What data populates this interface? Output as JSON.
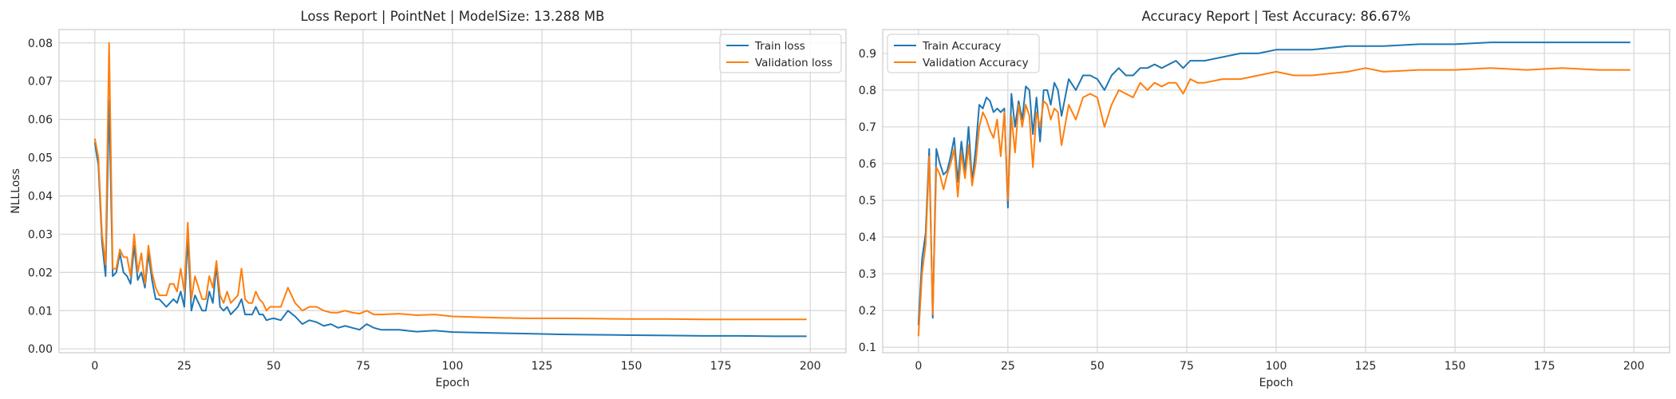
{
  "chart_data": [
    {
      "type": "line",
      "title": "Loss Report | PointNet | ModelSize: 13.288 MB",
      "xlabel": "Epoch",
      "ylabel": "NLLLoss",
      "xlim": [
        -10,
        210
      ],
      "ylim": [
        -0.001,
        0.0835
      ],
      "xticks": [
        0,
        25,
        50,
        75,
        100,
        125,
        150,
        175,
        200
      ],
      "yticks": [
        0.0,
        0.01,
        0.02,
        0.03,
        0.04,
        0.05,
        0.06,
        0.07,
        0.08
      ],
      "ytick_labels": [
        "0.00",
        "0.01",
        "0.02",
        "0.03",
        "0.04",
        "0.05",
        "0.06",
        "0.07",
        "0.08"
      ],
      "grid": true,
      "legend_position": "top-right",
      "series": [
        {
          "name": "Train loss",
          "color": "#1f77b4",
          "x": [
            0,
            1,
            2,
            3,
            4,
            5,
            6,
            7,
            8,
            9,
            10,
            11,
            12,
            13,
            14,
            15,
            16,
            17,
            18,
            19,
            20,
            21,
            22,
            23,
            24,
            25,
            26,
            27,
            28,
            29,
            30,
            31,
            32,
            33,
            34,
            35,
            36,
            37,
            38,
            39,
            40,
            41,
            42,
            43,
            44,
            45,
            46,
            47,
            48,
            49,
            50,
            52,
            54,
            56,
            58,
            60,
            62,
            64,
            66,
            68,
            70,
            72,
            74,
            76,
            78,
            80,
            85,
            90,
            95,
            100,
            110,
            120,
            130,
            140,
            150,
            160,
            170,
            180,
            190,
            199
          ],
          "y": [
            0.054,
            0.048,
            0.028,
            0.019,
            0.065,
            0.019,
            0.02,
            0.025,
            0.02,
            0.019,
            0.017,
            0.027,
            0.018,
            0.02,
            0.016,
            0.025,
            0.018,
            0.013,
            0.013,
            0.012,
            0.011,
            0.012,
            0.013,
            0.012,
            0.015,
            0.011,
            0.029,
            0.01,
            0.014,
            0.012,
            0.01,
            0.01,
            0.015,
            0.012,
            0.022,
            0.011,
            0.01,
            0.011,
            0.009,
            0.01,
            0.011,
            0.013,
            0.009,
            0.009,
            0.009,
            0.011,
            0.009,
            0.009,
            0.0075,
            0.0078,
            0.008,
            0.0075,
            0.01,
            0.0085,
            0.0065,
            0.0075,
            0.007,
            0.006,
            0.0065,
            0.0055,
            0.006,
            0.0055,
            0.005,
            0.0065,
            0.0055,
            0.005,
            0.005,
            0.0045,
            0.0048,
            0.0044,
            0.0042,
            0.004,
            0.0038,
            0.0037,
            0.0036,
            0.0035,
            0.0034,
            0.0034,
            0.0033,
            0.0033
          ]
        },
        {
          "name": "Validation loss",
          "color": "#ff7f0e",
          "x": [
            0,
            1,
            2,
            3,
            4,
            5,
            6,
            7,
            8,
            9,
            10,
            11,
            12,
            13,
            14,
            15,
            16,
            17,
            18,
            19,
            20,
            21,
            22,
            23,
            24,
            25,
            26,
            27,
            28,
            29,
            30,
            31,
            32,
            33,
            34,
            35,
            36,
            37,
            38,
            39,
            40,
            41,
            42,
            43,
            44,
            45,
            46,
            47,
            48,
            49,
            50,
            52,
            54,
            56,
            58,
            60,
            62,
            64,
            66,
            68,
            70,
            72,
            74,
            76,
            78,
            80,
            85,
            90,
            95,
            100,
            110,
            120,
            130,
            140,
            150,
            160,
            170,
            180,
            190,
            199
          ],
          "y": [
            0.055,
            0.05,
            0.03,
            0.022,
            0.08,
            0.021,
            0.021,
            0.026,
            0.024,
            0.024,
            0.019,
            0.03,
            0.02,
            0.025,
            0.017,
            0.027,
            0.02,
            0.016,
            0.014,
            0.014,
            0.014,
            0.017,
            0.017,
            0.015,
            0.021,
            0.015,
            0.033,
            0.013,
            0.019,
            0.016,
            0.013,
            0.013,
            0.019,
            0.016,
            0.023,
            0.014,
            0.012,
            0.015,
            0.012,
            0.013,
            0.014,
            0.021,
            0.013,
            0.012,
            0.012,
            0.015,
            0.013,
            0.012,
            0.01,
            0.011,
            0.011,
            0.011,
            0.016,
            0.012,
            0.01,
            0.011,
            0.011,
            0.01,
            0.0095,
            0.0095,
            0.01,
            0.0095,
            0.0092,
            0.01,
            0.009,
            0.009,
            0.0092,
            0.0088,
            0.009,
            0.0085,
            0.0082,
            0.008,
            0.008,
            0.0079,
            0.0078,
            0.0078,
            0.0077,
            0.0077,
            0.0077,
            0.0077
          ]
        }
      ]
    },
    {
      "type": "line",
      "title": "Accuracy Report | Test Accuracy: 86.67%",
      "xlabel": "Epoch",
      "ylabel": "",
      "xlim": [
        -10,
        210
      ],
      "ylim": [
        0.085,
        0.965
      ],
      "xticks": [
        0,
        25,
        50,
        75,
        100,
        125,
        150,
        175,
        200
      ],
      "yticks": [
        0.1,
        0.2,
        0.3,
        0.4,
        0.5,
        0.6,
        0.7,
        0.8,
        0.9
      ],
      "ytick_labels": [
        "0.1",
        "0.2",
        "0.3",
        "0.4",
        "0.5",
        "0.6",
        "0.7",
        "0.8",
        "0.9"
      ],
      "grid": true,
      "legend_position": "top-left",
      "series": [
        {
          "name": "Train Accuracy",
          "color": "#1f77b4",
          "x": [
            0,
            1,
            2,
            3,
            4,
            5,
            6,
            7,
            8,
            9,
            10,
            11,
            12,
            13,
            14,
            15,
            16,
            17,
            18,
            19,
            20,
            21,
            22,
            23,
            24,
            25,
            26,
            27,
            28,
            29,
            30,
            31,
            32,
            33,
            34,
            35,
            36,
            37,
            38,
            39,
            40,
            42,
            44,
            46,
            48,
            50,
            52,
            54,
            56,
            58,
            60,
            62,
            64,
            66,
            68,
            70,
            72,
            74,
            76,
            78,
            80,
            85,
            90,
            95,
            100,
            105,
            110,
            120,
            125,
            130,
            140,
            150,
            160,
            170,
            180,
            190,
            199
          ],
          "y": [
            0.16,
            0.34,
            0.41,
            0.64,
            0.18,
            0.64,
            0.6,
            0.57,
            0.58,
            0.62,
            0.67,
            0.55,
            0.66,
            0.58,
            0.7,
            0.55,
            0.64,
            0.76,
            0.75,
            0.78,
            0.77,
            0.74,
            0.75,
            0.74,
            0.75,
            0.48,
            0.79,
            0.7,
            0.77,
            0.72,
            0.81,
            0.8,
            0.68,
            0.78,
            0.66,
            0.8,
            0.8,
            0.76,
            0.82,
            0.8,
            0.73,
            0.83,
            0.8,
            0.84,
            0.84,
            0.83,
            0.8,
            0.84,
            0.86,
            0.84,
            0.84,
            0.86,
            0.86,
            0.87,
            0.86,
            0.87,
            0.88,
            0.86,
            0.88,
            0.88,
            0.88,
            0.89,
            0.9,
            0.9,
            0.91,
            0.91,
            0.91,
            0.92,
            0.92,
            0.92,
            0.925,
            0.925,
            0.93,
            0.93,
            0.93,
            0.93,
            0.93
          ]
        },
        {
          "name": "Validation Accuracy",
          "color": "#ff7f0e",
          "x": [
            0,
            1,
            2,
            3,
            4,
            5,
            6,
            7,
            8,
            9,
            10,
            11,
            12,
            13,
            14,
            15,
            16,
            17,
            18,
            19,
            20,
            21,
            22,
            23,
            24,
            25,
            26,
            27,
            28,
            29,
            30,
            31,
            32,
            33,
            34,
            35,
            36,
            37,
            38,
            39,
            40,
            42,
            44,
            46,
            48,
            50,
            52,
            54,
            56,
            58,
            60,
            62,
            64,
            66,
            68,
            70,
            72,
            74,
            76,
            78,
            80,
            85,
            90,
            95,
            100,
            105,
            110,
            120,
            125,
            130,
            140,
            150,
            160,
            170,
            180,
            190,
            199
          ],
          "y": [
            0.13,
            0.3,
            0.38,
            0.62,
            0.19,
            0.59,
            0.57,
            0.53,
            0.57,
            0.6,
            0.64,
            0.51,
            0.63,
            0.56,
            0.65,
            0.54,
            0.6,
            0.7,
            0.74,
            0.72,
            0.69,
            0.67,
            0.72,
            0.62,
            0.74,
            0.5,
            0.73,
            0.63,
            0.76,
            0.7,
            0.76,
            0.73,
            0.59,
            0.74,
            0.7,
            0.77,
            0.76,
            0.72,
            0.75,
            0.74,
            0.65,
            0.76,
            0.72,
            0.78,
            0.79,
            0.78,
            0.7,
            0.76,
            0.8,
            0.79,
            0.78,
            0.82,
            0.8,
            0.82,
            0.81,
            0.82,
            0.82,
            0.79,
            0.83,
            0.82,
            0.82,
            0.83,
            0.83,
            0.84,
            0.85,
            0.84,
            0.84,
            0.85,
            0.86,
            0.85,
            0.855,
            0.855,
            0.86,
            0.855,
            0.86,
            0.855,
            0.855
          ]
        }
      ]
    }
  ]
}
